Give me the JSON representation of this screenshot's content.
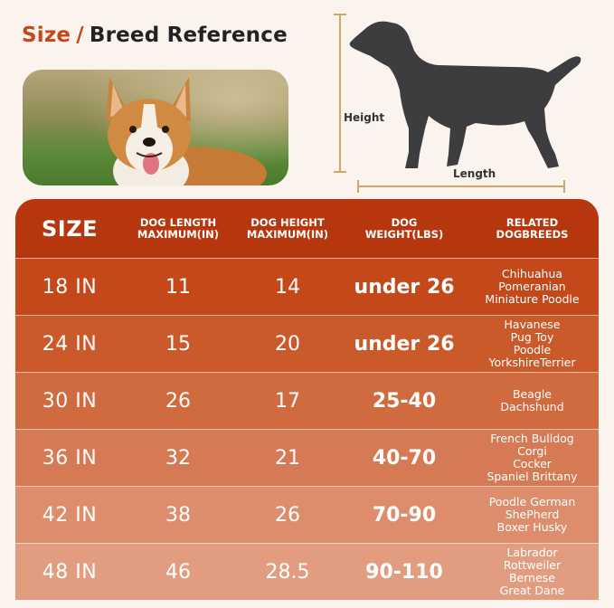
{
  "title": {
    "size_word": "Size",
    "slash": "/",
    "breed_word": "Breed Reference"
  },
  "diagram": {
    "height_label": "Height",
    "length_label": "Length"
  },
  "table": {
    "headers": {
      "size": "SIZE",
      "length": "DOG LENGTH\nMAXIMUM(IN)",
      "height": "DOG HEIGHT\nMAXIMUM(IN)",
      "weight": "DOG\nWEIGHT(LBS)",
      "breeds": "RELATED\nDOGBREEDS"
    },
    "rows": [
      {
        "size": "18 IN",
        "length": "11",
        "height": "14",
        "weight": "under 26",
        "breeds": "Chihuahua\nPomeranian\nMiniature Poodle",
        "color": "#c4481a"
      },
      {
        "size": "24 IN",
        "length": "15",
        "height": "20",
        "weight": "under 26",
        "breeds": "Havanese\nPug Toy\nPoodle\nYorkshireTerrier",
        "color": "#cb5a2a"
      },
      {
        "size": "30 IN",
        "length": "26",
        "height": "17",
        "weight": "25-40",
        "breeds": "Beagle\nDachshund",
        "color": "#d06a3f"
      },
      {
        "size": "36 IN",
        "length": "32",
        "height": "21",
        "weight": "40-70",
        "breeds": "French Bulldog\nCorgi\nCocker\nSpaniel Brittany",
        "color": "#d67a55"
      },
      {
        "size": "42 IN",
        "length": "38",
        "height": "26",
        "weight": "70-90",
        "breeds": "Poodle German\nShePherd\nBoxer Husky",
        "color": "#dd8c6c"
      },
      {
        "size": "48 IN",
        "length": "46",
        "height": "28.5",
        "weight": "90-110",
        "breeds": "Labrador\nRottweiler\nBernese\nGreat Dane",
        "color": "#e29c80"
      }
    ]
  }
}
